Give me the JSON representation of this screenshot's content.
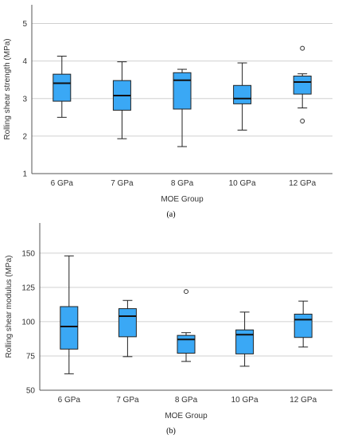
{
  "captions": {
    "a": "(a)",
    "b": "(b)"
  },
  "chart_data": [
    {
      "type": "box",
      "title": "",
      "xlabel": "MOE Group",
      "ylabel": "Rolling shear strength (MPa)",
      "categories": [
        "6 GPa",
        "7 GPa",
        "8 GPa",
        "10 GPa",
        "12 GPa"
      ],
      "ylim": [
        1,
        5.5
      ],
      "yticks": [
        1,
        2,
        3,
        4,
        5
      ],
      "grid": true,
      "box_color": "#3aa8f5",
      "boxes": [
        {
          "whisker_low": 2.5,
          "q1": 2.93,
          "median": 3.41,
          "q3": 3.65,
          "whisker_high": 4.13,
          "outliers": []
        },
        {
          "whisker_low": 1.93,
          "q1": 2.69,
          "median": 3.08,
          "q3": 3.48,
          "whisker_high": 3.98,
          "outliers": []
        },
        {
          "whisker_low": 1.72,
          "q1": 2.72,
          "median": 3.49,
          "q3": 3.69,
          "whisker_high": 3.78,
          "outliers": []
        },
        {
          "whisker_low": 2.16,
          "q1": 2.86,
          "median": 3.0,
          "q3": 3.35,
          "whisker_high": 3.95,
          "outliers": []
        },
        {
          "whisker_low": 2.75,
          "q1": 3.12,
          "median": 3.44,
          "q3": 3.6,
          "whisker_high": 3.66,
          "outliers": [
            4.34,
            2.4
          ]
        }
      ]
    },
    {
      "type": "box",
      "title": "",
      "xlabel": "MOE Group",
      "ylabel": "Rolling shear modulus (MPa)",
      "categories": [
        "6 GPa",
        "7 GPa",
        "8 GPa",
        "10 GPa",
        "12 GPa"
      ],
      "ylim": [
        50,
        172
      ],
      "yticks": [
        50,
        75,
        100,
        125,
        150
      ],
      "grid": true,
      "box_color": "#3aa8f5",
      "boxes": [
        {
          "whisker_low": 62,
          "q1": 80,
          "median": 96.5,
          "q3": 111,
          "whisker_high": 148,
          "outliers": []
        },
        {
          "whisker_low": 74.5,
          "q1": 89,
          "median": 104,
          "q3": 109.5,
          "whisker_high": 115.5,
          "outliers": []
        },
        {
          "whisker_low": 71,
          "q1": 77,
          "median": 87,
          "q3": 90,
          "whisker_high": 92,
          "outliers": [
            122
          ]
        },
        {
          "whisker_low": 67.5,
          "q1": 76.5,
          "median": 90.5,
          "q3": 94,
          "whisker_high": 107,
          "outliers": []
        },
        {
          "whisker_low": 81.5,
          "q1": 88.5,
          "median": 101.5,
          "q3": 105.5,
          "whisker_high": 115,
          "outliers": []
        }
      ]
    }
  ]
}
